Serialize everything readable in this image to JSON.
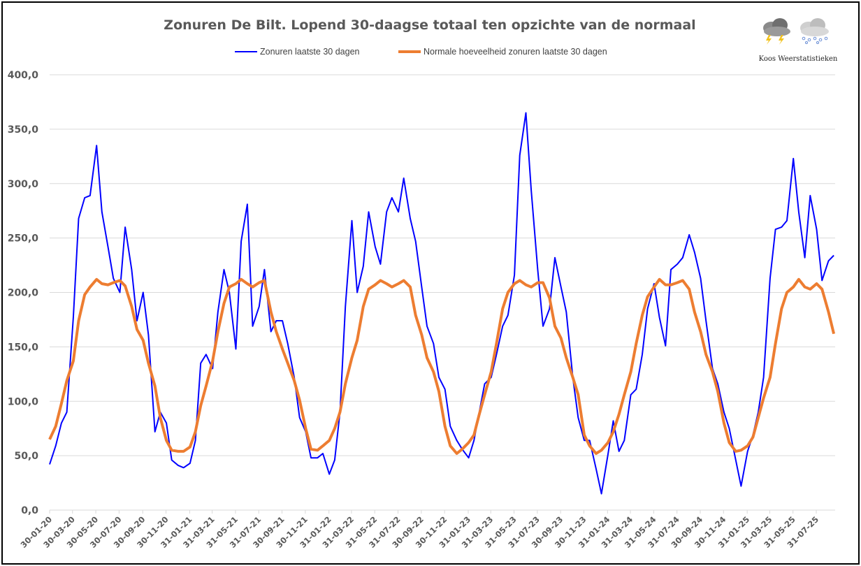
{
  "chart_data": {
    "type": "line",
    "title": "Zonuren De Bilt. Lopend 30-daagse totaal ten opzichte van de normaal",
    "xlabel": "",
    "ylabel": "",
    "ylim": [
      0,
      400
    ],
    "grid": true,
    "legend_position": "top",
    "y_ticks": [
      "0,0",
      "50,0",
      "100,0",
      "150,0",
      "200,0",
      "250,0",
      "300,0",
      "350,0",
      "400,0"
    ],
    "x_ticks": [
      "30-01-20",
      "30-03-20",
      "30-05-20",
      "30-07-20",
      "30-09-20",
      "30-11-20",
      "31-01-21",
      "31-03-21",
      "31-05-21",
      "31-07-21",
      "30-09-21",
      "30-11-21",
      "31-01-22",
      "31-03-22",
      "31-05-22",
      "31-07-22",
      "30-09-22",
      "30-11-22",
      "31-01-23",
      "31-03-23",
      "31-05-23",
      "31-07-23",
      "30-09-23",
      "30-11-23",
      "31-01-24",
      "31-03-24",
      "31-05-24",
      "31-07-24",
      "30-09-24",
      "30-11-24",
      "31-01-25",
      "31-03-25",
      "31-05-25",
      "31-07-25"
    ],
    "x": [
      "2020-01-30",
      "2020-02-15",
      "2020-03-01",
      "2020-03-15",
      "2020-04-01",
      "2020-04-15",
      "2020-05-01",
      "2020-05-15",
      "2020-06-01",
      "2020-06-15",
      "2020-07-01",
      "2020-07-15",
      "2020-08-01",
      "2020-08-15",
      "2020-09-01",
      "2020-09-15",
      "2020-10-01",
      "2020-10-15",
      "2020-11-01",
      "2020-11-15",
      "2020-12-01",
      "2020-12-15",
      "2021-01-01",
      "2021-01-15",
      "2021-02-01",
      "2021-02-15",
      "2021-03-01",
      "2021-03-15",
      "2021-04-01",
      "2021-04-15",
      "2021-05-01",
      "2021-05-15",
      "2021-06-01",
      "2021-06-15",
      "2021-07-01",
      "2021-07-15",
      "2021-08-01",
      "2021-08-15",
      "2021-09-01",
      "2021-09-15",
      "2021-10-01",
      "2021-10-15",
      "2021-11-01",
      "2021-11-15",
      "2021-12-01",
      "2021-12-15",
      "2022-01-01",
      "2022-01-15",
      "2022-02-01",
      "2022-02-15",
      "2022-03-01",
      "2022-03-15",
      "2022-04-01",
      "2022-04-15",
      "2022-05-01",
      "2022-05-15",
      "2022-06-01",
      "2022-06-15",
      "2022-07-01",
      "2022-07-15",
      "2022-08-01",
      "2022-08-15",
      "2022-09-01",
      "2022-09-15",
      "2022-10-01",
      "2022-10-15",
      "2022-11-01",
      "2022-11-15",
      "2022-12-01",
      "2022-12-15",
      "2023-01-01",
      "2023-01-15",
      "2023-02-01",
      "2023-02-15",
      "2023-03-01",
      "2023-03-15",
      "2023-04-01",
      "2023-04-15",
      "2023-05-01",
      "2023-05-15",
      "2023-06-01",
      "2023-06-15",
      "2023-07-01",
      "2023-07-15",
      "2023-08-01",
      "2023-08-15",
      "2023-09-01",
      "2023-09-15",
      "2023-10-01",
      "2023-10-15",
      "2023-11-01",
      "2023-11-15",
      "2023-12-01",
      "2023-12-15",
      "2024-01-01",
      "2024-01-15",
      "2024-02-01",
      "2024-02-15",
      "2024-03-01",
      "2024-03-15",
      "2024-04-01",
      "2024-04-15",
      "2024-05-01",
      "2024-05-15",
      "2024-06-01",
      "2024-06-15",
      "2024-07-01",
      "2024-07-15",
      "2024-08-01",
      "2024-08-15",
      "2024-09-01",
      "2024-09-15",
      "2024-10-01",
      "2024-10-15",
      "2024-11-01",
      "2024-11-15",
      "2024-12-01",
      "2024-12-15",
      "2025-01-01",
      "2025-01-15",
      "2025-02-01",
      "2025-02-15",
      "2025-03-01",
      "2025-03-15",
      "2025-04-01",
      "2025-04-15",
      "2025-05-01",
      "2025-05-15",
      "2025-06-01",
      "2025-06-15",
      "2025-07-01",
      "2025-07-15",
      "2025-08-01",
      "2025-08-15",
      "2025-09-01",
      "2025-09-15"
    ],
    "series": [
      {
        "name": "Zonuren laatste 30 dagen",
        "color": "#0000FF",
        "values": [
          42,
          59,
          80,
          90,
          177,
          268,
          287,
          289,
          335,
          274,
          242,
          213,
          200,
          260,
          221,
          174,
          200,
          161,
          72,
          90,
          80,
          46,
          41,
          39,
          43,
          64,
          135,
          143,
          130,
          182,
          221,
          200,
          148,
          247,
          281,
          169,
          187,
          221,
          164,
          174,
          174,
          153,
          122,
          85,
          72,
          48,
          48,
          52,
          33,
          46,
          90,
          187,
          266,
          200,
          224,
          274,
          242,
          226,
          274,
          287,
          274,
          305,
          268,
          247,
          205,
          169,
          153,
          122,
          111,
          77,
          64,
          56,
          48,
          64,
          90,
          116,
          122,
          143,
          169,
          179,
          216,
          326,
          365,
          294,
          221,
          169,
          185,
          232,
          205,
          182,
          122,
          85,
          64,
          64,
          38,
          15,
          51,
          82,
          54,
          64,
          106,
          111,
          143,
          185,
          208,
          177,
          151,
          221,
          226,
          232,
          253,
          237,
          213,
          174,
          130,
          116,
          90,
          75,
          46,
          22,
          54,
          69,
          90,
          122,
          213,
          258,
          260,
          266,
          323,
          274,
          232,
          289,
          258,
          211,
          229,
          234
        ]
      },
      {
        "name": "Normale hoeveelheid zonuren laatste 30 dagen",
        "color": "#ED7D31",
        "values": [
          65,
          77,
          98,
          119,
          137,
          174,
          198,
          205,
          212,
          208,
          207,
          209,
          211,
          206,
          187,
          166,
          156,
          135,
          114,
          85,
          64,
          55,
          54,
          54,
          58,
          72,
          96,
          114,
          137,
          164,
          190,
          205,
          208,
          212,
          208,
          205,
          209,
          211,
          182,
          164,
          148,
          135,
          119,
          101,
          75,
          56,
          55,
          59,
          64,
          75,
          90,
          116,
          140,
          156,
          187,
          203,
          207,
          211,
          208,
          205,
          208,
          211,
          205,
          179,
          161,
          140,
          127,
          109,
          77,
          59,
          52,
          56,
          62,
          69,
          88,
          106,
          127,
          153,
          185,
          200,
          208,
          211,
          207,
          205,
          209,
          209,
          195,
          169,
          158,
          140,
          122,
          106,
          69,
          59,
          52,
          55,
          62,
          72,
          88,
          106,
          127,
          153,
          179,
          196,
          205,
          212,
          207,
          207,
          209,
          211,
          203,
          182,
          164,
          143,
          127,
          109,
          80,
          62,
          54,
          55,
          59,
          67,
          85,
          103,
          122,
          153,
          185,
          200,
          205,
          212,
          205,
          203,
          208,
          203,
          182,
          162
        ]
      }
    ]
  },
  "logo": {
    "text": "Koos Weerstatistieken",
    "icons": [
      "thunderstorm-cloud-icon",
      "snow-cloud-icon"
    ]
  }
}
